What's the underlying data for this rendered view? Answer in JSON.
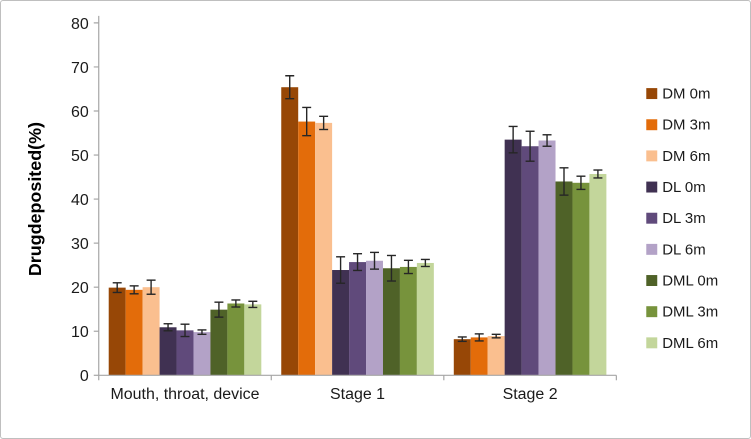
{
  "chart_data": {
    "type": "bar",
    "title": "",
    "xlabel": "",
    "ylabel": "Drugdeposited(%)",
    "ylim": [
      0,
      80
    ],
    "ytick_step": 10,
    "ytick_labels": [
      "0",
      "10",
      "20",
      "30",
      "40",
      "50",
      "60",
      "70",
      "80"
    ],
    "grid": false,
    "legend_position": "right",
    "error_bars": true,
    "categories": [
      "Mouth, throat, device",
      "Stage 1",
      "Stage 2"
    ],
    "series": [
      {
        "name": "DM 0m",
        "color": "#974706",
        "values": [
          19.9,
          65.4,
          8.2
        ],
        "errors": [
          1.1,
          2.6,
          0.5
        ]
      },
      {
        "name": "DM 3m",
        "color": "#E36C0A",
        "values": [
          19.4,
          57.6,
          8.6
        ],
        "errors": [
          0.9,
          3.2,
          0.8
        ]
      },
      {
        "name": "DM 6m",
        "color": "#FABF8F",
        "values": [
          20.0,
          57.3,
          8.9
        ],
        "errors": [
          1.6,
          1.5,
          0.4
        ]
      },
      {
        "name": "DL 0m",
        "color": "#403152",
        "values": [
          10.9,
          23.9,
          53.5
        ],
        "errors": [
          0.8,
          3.0,
          3.0
        ]
      },
      {
        "name": "DL 3m",
        "color": "#604A7B",
        "values": [
          10.2,
          25.7,
          52.0
        ],
        "errors": [
          1.4,
          1.9,
          3.4
        ]
      },
      {
        "name": "DL 6m",
        "color": "#B3A2C7",
        "values": [
          9.8,
          26.0,
          53.3
        ],
        "errors": [
          0.5,
          1.9,
          1.3
        ]
      },
      {
        "name": "DML 0m",
        "color": "#4F6228",
        "values": [
          14.9,
          24.3,
          44.0
        ],
        "errors": [
          1.7,
          2.9,
          3.1
        ]
      },
      {
        "name": "DML 3m",
        "color": "#77933C",
        "values": [
          16.3,
          24.6,
          43.7
        ],
        "errors": [
          0.8,
          1.5,
          1.5
        ]
      },
      {
        "name": "DML 6m",
        "color": "#C3D69B",
        "values": [
          16.1,
          25.5,
          45.7
        ],
        "errors": [
          0.7,
          0.8,
          0.9
        ]
      }
    ],
    "axis_color": "#A6A6A6",
    "error_bar_color": "#262626",
    "text_color": "#1a1a1a"
  },
  "frame": {
    "background": "#FFFFFF",
    "border_color": "#BFBFBF"
  }
}
